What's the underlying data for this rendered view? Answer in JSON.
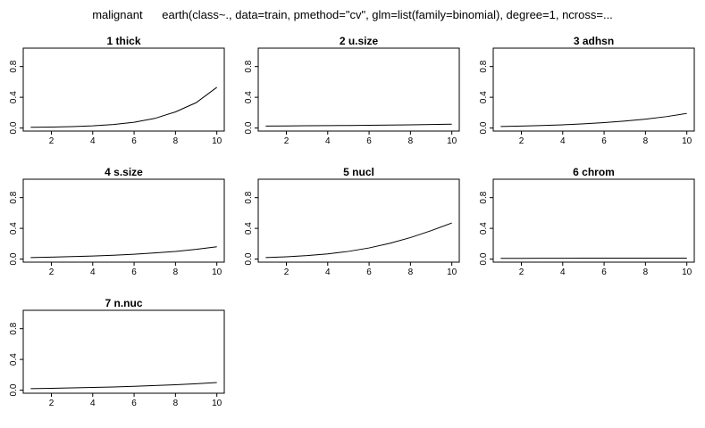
{
  "figure": {
    "title": "malignant      earth(class~., data=train, pmethod=\"cv\", glm=list(family=binomial), degree=1, ncross=..."
  },
  "chart_data": [
    {
      "type": "line",
      "title": "1  thick",
      "x": [
        1,
        2,
        3,
        4,
        5,
        6,
        7,
        8,
        9,
        10
      ],
      "values": [
        0.01,
        0.012,
        0.018,
        0.028,
        0.045,
        0.075,
        0.125,
        0.21,
        0.33,
        0.53
      ],
      "xticks": [
        2,
        4,
        6,
        8,
        10
      ],
      "yticks": [
        "0.0",
        "0.4",
        "0.8"
      ],
      "xlim": [
        1,
        10
      ],
      "ylim": [
        0,
        1
      ],
      "grid": false
    },
    {
      "type": "line",
      "title": "2  u.size",
      "x": [
        1,
        2,
        3,
        4,
        5,
        6,
        7,
        8,
        9,
        10
      ],
      "values": [
        0.025,
        0.027,
        0.029,
        0.031,
        0.033,
        0.036,
        0.039,
        0.042,
        0.046,
        0.05
      ],
      "xticks": [
        2,
        4,
        6,
        8,
        10
      ],
      "yticks": [
        "0.0",
        "0.4",
        "0.8"
      ],
      "xlim": [
        1,
        10
      ],
      "ylim": [
        0,
        1
      ],
      "grid": false
    },
    {
      "type": "line",
      "title": "3  adhsn",
      "x": [
        1,
        2,
        3,
        4,
        5,
        6,
        7,
        8,
        9,
        10
      ],
      "values": [
        0.02,
        0.026,
        0.033,
        0.042,
        0.054,
        0.07,
        0.09,
        0.115,
        0.148,
        0.19
      ],
      "xticks": [
        2,
        4,
        6,
        8,
        10
      ],
      "yticks": [
        "0.0",
        "0.4",
        "0.8"
      ],
      "xlim": [
        1,
        10
      ],
      "ylim": [
        0,
        1
      ],
      "grid": false
    },
    {
      "type": "line",
      "title": "4  s.size",
      "x": [
        1,
        2,
        3,
        4,
        5,
        6,
        7,
        8,
        9,
        10
      ],
      "values": [
        0.02,
        0.025,
        0.032,
        0.04,
        0.05,
        0.063,
        0.08,
        0.1,
        0.127,
        0.16
      ],
      "xticks": [
        2,
        4,
        6,
        8,
        10
      ],
      "yticks": [
        "0.0",
        "0.4",
        "0.8"
      ],
      "xlim": [
        1,
        10
      ],
      "ylim": [
        0,
        1
      ],
      "grid": false
    },
    {
      "type": "line",
      "title": "5  nucl",
      "x": [
        1,
        2,
        3,
        4,
        5,
        6,
        7,
        8,
        9,
        10
      ],
      "values": [
        0.02,
        0.03,
        0.045,
        0.068,
        0.1,
        0.145,
        0.205,
        0.28,
        0.37,
        0.47
      ],
      "xticks": [
        2,
        4,
        6,
        8,
        10
      ],
      "yticks": [
        "0.0",
        "0.4",
        "0.8"
      ],
      "xlim": [
        1,
        10
      ],
      "ylim": [
        0,
        1
      ],
      "grid": false
    },
    {
      "type": "line",
      "title": "6  chrom",
      "x": [
        1,
        2,
        3,
        4,
        5,
        6,
        7,
        8,
        9,
        10
      ],
      "values": [
        0.01,
        0.01,
        0.011,
        0.011,
        0.012,
        0.012,
        0.012,
        0.013,
        0.013,
        0.013
      ],
      "xticks": [
        2,
        4,
        6,
        8,
        10
      ],
      "yticks": [
        "0.0",
        "0.4",
        "0.8"
      ],
      "xlim": [
        1,
        10
      ],
      "ylim": [
        0,
        1
      ],
      "grid": false
    },
    {
      "type": "line",
      "title": "7  n.nuc",
      "x": [
        1,
        2,
        3,
        4,
        5,
        6,
        7,
        8,
        9,
        10
      ],
      "values": [
        0.02,
        0.024,
        0.029,
        0.035,
        0.042,
        0.05,
        0.06,
        0.071,
        0.084,
        0.1
      ],
      "xticks": [
        2,
        4,
        6,
        8,
        10
      ],
      "yticks": [
        "0.0",
        "0.4",
        "0.8"
      ],
      "xlim": [
        1,
        10
      ],
      "ylim": [
        0,
        1
      ],
      "grid": false
    }
  ]
}
